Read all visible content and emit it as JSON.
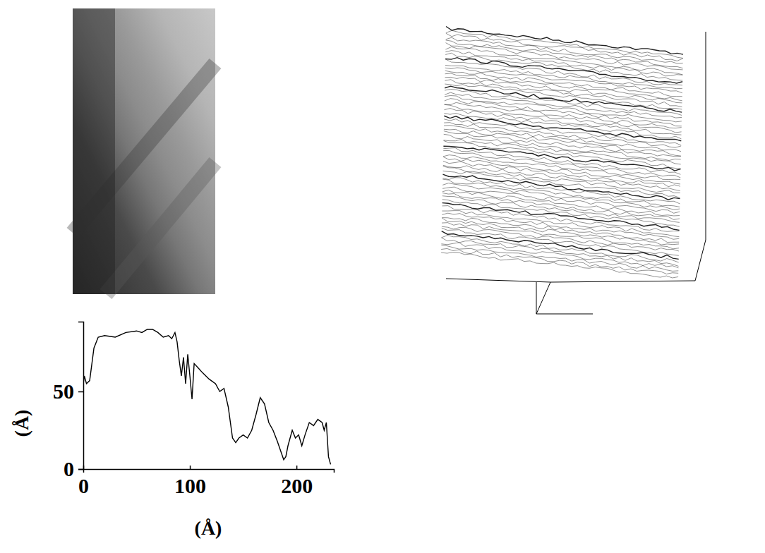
{
  "chart_data": {
    "type": "line",
    "x": [
      0,
      1,
      3,
      6,
      10,
      14,
      20,
      30,
      40,
      50,
      55,
      60,
      65,
      70,
      75,
      80,
      83,
      86,
      88,
      90,
      92,
      94,
      96,
      98,
      100,
      102,
      104,
      108,
      112,
      118,
      124,
      128,
      132,
      136,
      140,
      143,
      146,
      150,
      154,
      158,
      162,
      166,
      170,
      174,
      178,
      182,
      186,
      188,
      190,
      192,
      196,
      199,
      202,
      205,
      208,
      212,
      216,
      220,
      224,
      226,
      228,
      230,
      232
    ],
    "values": [
      55,
      60,
      55,
      57,
      78,
      85,
      86,
      85,
      88,
      89,
      88,
      90,
      90,
      88,
      85,
      86,
      84,
      88,
      82,
      70,
      60,
      72,
      55,
      74,
      60,
      45,
      68,
      65,
      62,
      58,
      55,
      50,
      52,
      40,
      20,
      17,
      20,
      22,
      20,
      25,
      35,
      46,
      42,
      30,
      25,
      18,
      10,
      6,
      8,
      15,
      25,
      20,
      22,
      15,
      22,
      30,
      28,
      32,
      30,
      25,
      30,
      8,
      3
    ],
    "xlim": [
      0,
      235
    ],
    "ylim": [
      0,
      95
    ],
    "xticks": [
      0,
      100,
      200
    ],
    "yticks": [
      0,
      50
    ],
    "x_label": "(Å)",
    "y_label": "(Å)",
    "color": "#000000",
    "grid": false
  }
}
